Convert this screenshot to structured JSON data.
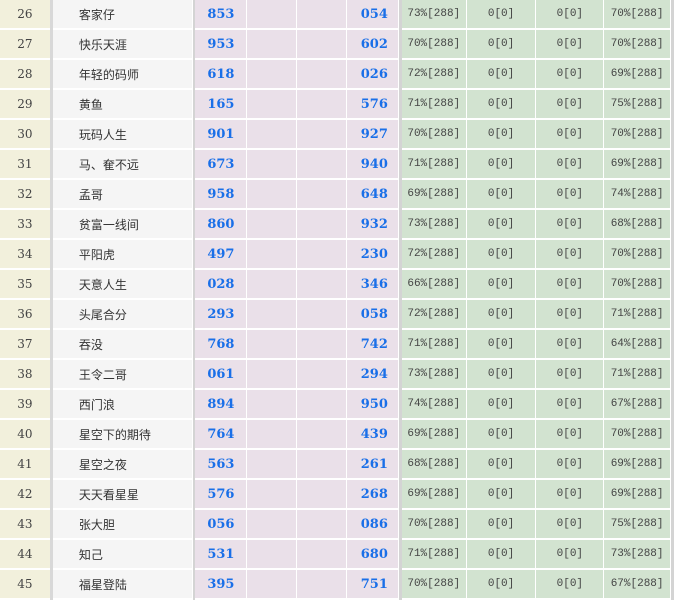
{
  "colors": {
    "index_bg": "#f2f0dc",
    "name_bg": "#f5f5f5",
    "pink_bg": "#eae0e9",
    "green_bg": "#d2e3d0",
    "number_blue": "#1a6fe8"
  },
  "rows": [
    {
      "index": "26",
      "name": "客家仔",
      "num_a": "853",
      "num_b": "054",
      "rate1": "73%[288]",
      "c1": "0[0]",
      "c2": "0[0]",
      "rate2": "70%[288]"
    },
    {
      "index": "27",
      "name": "快乐天涯",
      "num_a": "953",
      "num_b": "602",
      "rate1": "70%[288]",
      "c1": "0[0]",
      "c2": "0[0]",
      "rate2": "70%[288]"
    },
    {
      "index": "28",
      "name": "年轻的码师",
      "num_a": "618",
      "num_b": "026",
      "rate1": "72%[288]",
      "c1": "0[0]",
      "c2": "0[0]",
      "rate2": "69%[288]"
    },
    {
      "index": "29",
      "name": "黄鱼",
      "num_a": "165",
      "num_b": "576",
      "rate1": "71%[288]",
      "c1": "0[0]",
      "c2": "0[0]",
      "rate2": "75%[288]"
    },
    {
      "index": "30",
      "name": "玩码人生",
      "num_a": "901",
      "num_b": "927",
      "rate1": "70%[288]",
      "c1": "0[0]",
      "c2": "0[0]",
      "rate2": "70%[288]"
    },
    {
      "index": "31",
      "name": "马、奞不远",
      "num_a": "673",
      "num_b": "940",
      "rate1": "71%[288]",
      "c1": "0[0]",
      "c2": "0[0]",
      "rate2": "69%[288]"
    },
    {
      "index": "32",
      "name": "孟哥",
      "num_a": "958",
      "num_b": "648",
      "rate1": "69%[288]",
      "c1": "0[0]",
      "c2": "0[0]",
      "rate2": "74%[288]"
    },
    {
      "index": "33",
      "name": "贫富一线间",
      "num_a": "860",
      "num_b": "932",
      "rate1": "73%[288]",
      "c1": "0[0]",
      "c2": "0[0]",
      "rate2": "68%[288]"
    },
    {
      "index": "34",
      "name": "平阳虎",
      "num_a": "497",
      "num_b": "230",
      "rate1": "72%[288]",
      "c1": "0[0]",
      "c2": "0[0]",
      "rate2": "70%[288]"
    },
    {
      "index": "35",
      "name": "天意人生",
      "num_a": "028",
      "num_b": "346",
      "rate1": "66%[288]",
      "c1": "0[0]",
      "c2": "0[0]",
      "rate2": "70%[288]"
    },
    {
      "index": "36",
      "name": "头尾合分",
      "num_a": "293",
      "num_b": "058",
      "rate1": "72%[288]",
      "c1": "0[0]",
      "c2": "0[0]",
      "rate2": "71%[288]"
    },
    {
      "index": "37",
      "name": "吞没",
      "num_a": "768",
      "num_b": "742",
      "rate1": "71%[288]",
      "c1": "0[0]",
      "c2": "0[0]",
      "rate2": "64%[288]"
    },
    {
      "index": "38",
      "name": "王令二哥",
      "num_a": "061",
      "num_b": "294",
      "rate1": "73%[288]",
      "c1": "0[0]",
      "c2": "0[0]",
      "rate2": "71%[288]"
    },
    {
      "index": "39",
      "name": "西门浪",
      "num_a": "894",
      "num_b": "950",
      "rate1": "74%[288]",
      "c1": "0[0]",
      "c2": "0[0]",
      "rate2": "67%[288]"
    },
    {
      "index": "40",
      "name": "星空下的期待",
      "num_a": "764",
      "num_b": "439",
      "rate1": "69%[288]",
      "c1": "0[0]",
      "c2": "0[0]",
      "rate2": "70%[288]"
    },
    {
      "index": "41",
      "name": "星空之夜",
      "num_a": "563",
      "num_b": "261",
      "rate1": "68%[288]",
      "c1": "0[0]",
      "c2": "0[0]",
      "rate2": "69%[288]"
    },
    {
      "index": "42",
      "name": "天天看星星",
      "num_a": "576",
      "num_b": "268",
      "rate1": "69%[288]",
      "c1": "0[0]",
      "c2": "0[0]",
      "rate2": "69%[288]"
    },
    {
      "index": "43",
      "name": "张大胆",
      "num_a": "056",
      "num_b": "086",
      "rate1": "70%[288]",
      "c1": "0[0]",
      "c2": "0[0]",
      "rate2": "75%[288]"
    },
    {
      "index": "44",
      "name": "知己",
      "num_a": "531",
      "num_b": "680",
      "rate1": "71%[288]",
      "c1": "0[0]",
      "c2": "0[0]",
      "rate2": "73%[288]"
    },
    {
      "index": "45",
      "name": "福星登陆",
      "num_a": "395",
      "num_b": "751",
      "rate1": "70%[288]",
      "c1": "0[0]",
      "c2": "0[0]",
      "rate2": "67%[288]"
    }
  ]
}
